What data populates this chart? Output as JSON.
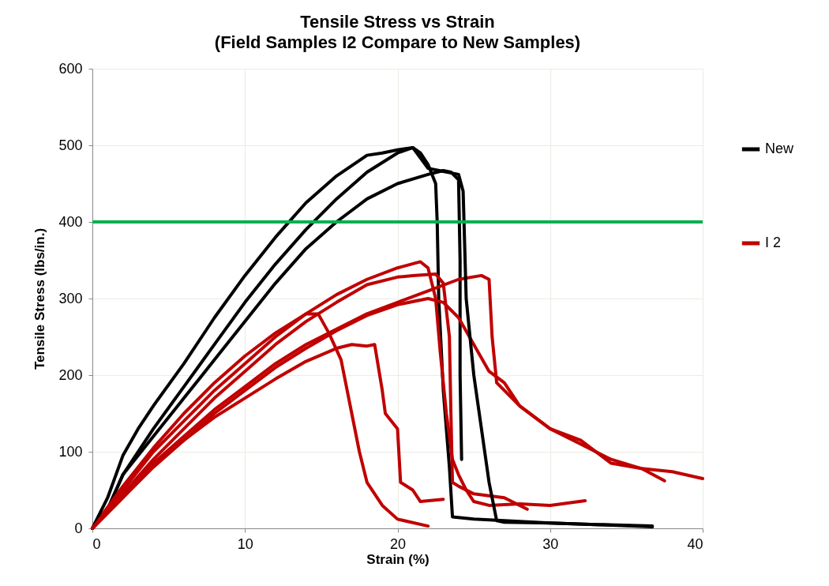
{
  "chart_data": {
    "type": "line",
    "title": "Tensile Stress vs Strain",
    "subtitle": "(Field Samples I2 Compare to New Samples)",
    "xlabel": "Strain (%)",
    "ylabel": "Tensile Stress (lbs/in.)",
    "xlim": [
      0,
      40
    ],
    "xticks": [
      0,
      10,
      20,
      30,
      40
    ],
    "ylim": [
      0,
      600
    ],
    "yticks": [
      0,
      100,
      200,
      300,
      400,
      500,
      600
    ],
    "grid": true,
    "legend": "right",
    "marker": "none",
    "line_style": "solid",
    "ref_lines": [
      {
        "axis": "y",
        "value": 400,
        "label": null,
        "color": "#00b050"
      }
    ],
    "series": [
      {
        "name": "New",
        "color": "#000000",
        "x": [
          0,
          1,
          2,
          3,
          4,
          6,
          8,
          10,
          12,
          14,
          16,
          18,
          19,
          20,
          21,
          22,
          23,
          24,
          24.3,
          24.5,
          25,
          26,
          26.5,
          27,
          30,
          33,
          36.7
        ],
        "values": [
          0,
          40,
          95,
          130,
          160,
          215,
          275,
          330,
          380,
          425,
          460,
          487,
          490,
          494,
          497,
          470,
          466,
          462,
          440,
          300,
          200,
          60,
          10,
          8,
          7,
          5,
          2
        ]
      },
      {
        "color": "#000000",
        "x": [
          0,
          1,
          2,
          4,
          6,
          8,
          10,
          12,
          14,
          16,
          18,
          20,
          21,
          21.5,
          22,
          22.5,
          22.6,
          22.7,
          23,
          23.4,
          23.6,
          25,
          27,
          30,
          33,
          36.7
        ],
        "values": [
          0,
          25,
          70,
          130,
          185,
          240,
          295,
          345,
          390,
          430,
          465,
          490,
          497,
          490,
          475,
          450,
          400,
          300,
          180,
          80,
          15,
          12,
          10,
          7,
          5,
          3
        ]
      },
      {
        "color": "#000000",
        "x": [
          0,
          1,
          2,
          4,
          6,
          8,
          10,
          12,
          14,
          16,
          18,
          20,
          22,
          23,
          23.5,
          24,
          24.1,
          24.1,
          24.2
        ],
        "values": [
          0,
          25,
          70,
          120,
          170,
          220,
          270,
          320,
          365,
          400,
          430,
          450,
          462,
          467,
          465,
          455,
          350,
          200,
          90
        ]
      },
      {
        "name": "I 2",
        "color": "#c00000",
        "x": [
          0,
          2,
          4,
          6,
          8,
          10,
          12,
          14,
          14.8,
          15.5,
          16.3,
          17,
          17.5,
          18,
          19,
          20,
          22
        ],
        "values": [
          0,
          50,
          100,
          140,
          180,
          215,
          250,
          280,
          280,
          255,
          220,
          150,
          100,
          60,
          30,
          12,
          3
        ]
      },
      {
        "color": "#c00000",
        "x": [
          0,
          2,
          4,
          6,
          8,
          10,
          12,
          14,
          16,
          17,
          18,
          18.5,
          19,
          19.2,
          20,
          20.2,
          21,
          21.5,
          23
        ],
        "values": [
          0,
          45,
          85,
          115,
          145,
          170,
          195,
          218,
          235,
          240,
          238,
          240,
          180,
          150,
          130,
          60,
          50,
          35,
          38
        ]
      },
      {
        "color": "#c00000",
        "x": [
          0,
          2,
          4,
          6,
          8,
          10,
          12,
          14,
          16,
          18,
          20,
          21.5,
          22,
          22.5,
          22.8,
          23.2,
          23.6,
          24,
          24.5,
          25,
          26,
          28,
          30,
          32.3
        ],
        "values": [
          0,
          55,
          105,
          150,
          190,
          225,
          255,
          280,
          305,
          325,
          340,
          348,
          340,
          300,
          230,
          150,
          90,
          70,
          50,
          35,
          30,
          32,
          30,
          36
        ]
      },
      {
        "color": "#c00000",
        "x": [
          0,
          2,
          4,
          6,
          8,
          10,
          12,
          14,
          16,
          18,
          20,
          21,
          22.5,
          23,
          23.4,
          23.5,
          23.6,
          24,
          25,
          27,
          28.5
        ],
        "values": [
          0,
          45,
          90,
          130,
          170,
          205,
          240,
          270,
          295,
          318,
          328,
          330,
          332,
          320,
          250,
          150,
          60,
          55,
          45,
          40,
          25
        ]
      },
      {
        "color": "#c00000",
        "x": [
          0,
          2,
          4,
          6,
          8,
          10,
          12,
          14,
          16,
          18,
          20,
          22,
          24,
          25.5,
          26,
          26.2,
          26.5,
          28,
          30,
          32,
          34,
          36,
          38,
          40
        ],
        "values": [
          0,
          40,
          85,
          120,
          155,
          185,
          215,
          240,
          260,
          280,
          295,
          310,
          325,
          330,
          325,
          250,
          190,
          160,
          130,
          110,
          90,
          78,
          74,
          65
        ]
      },
      {
        "color": "#c00000",
        "x": [
          0,
          2,
          4,
          6,
          8,
          10,
          12,
          14,
          16,
          18,
          20,
          22,
          23,
          24,
          25,
          26,
          27,
          28,
          30,
          32,
          34,
          36,
          37.5
        ],
        "values": [
          0,
          40,
          80,
          115,
          150,
          180,
          210,
          235,
          258,
          278,
          292,
          300,
          295,
          275,
          240,
          205,
          190,
          160,
          130,
          115,
          85,
          78,
          62
        ]
      }
    ]
  }
}
